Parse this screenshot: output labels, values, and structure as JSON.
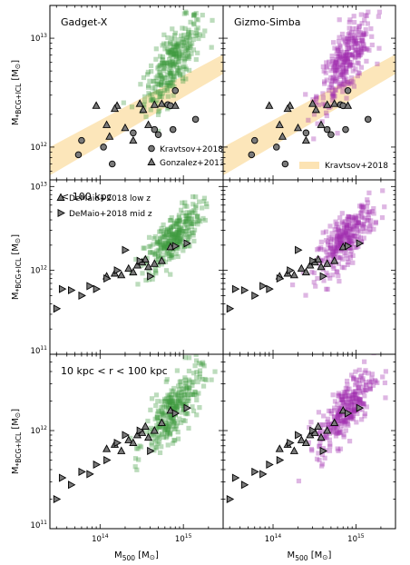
{
  "figure": {
    "xlabel": "M$_{500}$ [M$_\\odot$]",
    "xlabel_plain": "M500 [M⊙]",
    "ylabel_plain": "M*BCG+ICL [M⊙]",
    "x_tick_labels": [
      "10^14",
      "10^15"
    ]
  },
  "chart_data": [
    {
      "type": "scatter",
      "panel_title": "Gadget-X",
      "xscale": "log",
      "yscale": "log",
      "xlim": [
        25000000000000.0,
        3000000000000000.0
      ],
      "ylim": [
        500000000000.0,
        20000000000000.0
      ],
      "y_tick_labels": [
        "10^12",
        "10^13"
      ],
      "legend": {
        "placement": "bottom-right",
        "entries": [
          "Kravtsov+2018",
          "Gonzalez+2013"
        ]
      },
      "simulation_color": "#3f9b3f",
      "series": [
        {
          "name": "Kravtsov+2018",
          "marker": "circle",
          "x": [
            60000000000000.0,
            55000000000000.0,
            110000000000000.0,
            140000000000000.0,
            250000000000000.0,
            450000000000000.0,
            500000000000000.0,
            650000000000000.0,
            700000000000000.0,
            750000000000000.0,
            800000000000000.0,
            1400000000000000.0
          ],
          "y": [
            1150000000000.0,
            850000000000.0,
            1000000000000.0,
            700000000000.0,
            1350000000000.0,
            1450000000000.0,
            1300000000000.0,
            2450000000000.0,
            2400000000000.0,
            1450000000000.0,
            3300000000000.0,
            1800000000000.0
          ]
        },
        {
          "name": "Gonzalez+2013",
          "marker": "triangle",
          "x": [
            90000000000000.0,
            130000000000000.0,
            160000000000000.0,
            200000000000000.0,
            250000000000000.0,
            300000000000000.0,
            330000000000000.0,
            380000000000000.0,
            450000000000000.0,
            550000000000000.0,
            800000000000000.0,
            120000000000000.0,
            150000000000000.0
          ],
          "y": [
            2400000000000.0,
            1250000000000.0,
            2400000000000.0,
            1500000000000.0,
            1150000000000.0,
            2500000000000.0,
            2200000000000.0,
            1600000000000.0,
            2450000000000.0,
            2500000000000.0,
            2400000000000.0,
            1600000000000.0,
            2250000000000.0
          ]
        }
      ],
      "band": {
        "name": "Kravtsov+2018",
        "color": "#fce3b3",
        "x": [
          25000000000000.0,
          3000000000000000.0
        ],
        "y_lower": [
          550000000000.0,
          4700000000000.0
        ],
        "y_upper": [
          1000000000000.0,
          7100000000000.0
        ]
      }
    },
    {
      "type": "scatter",
      "panel_title": "Gizmo-Simba",
      "xscale": "log",
      "yscale": "log",
      "xlim": [
        25000000000000.0,
        3000000000000000.0
      ],
      "ylim": [
        500000000000.0,
        20000000000000.0
      ],
      "y_tick_labels": [
        "10^12",
        "10^13"
      ],
      "legend": {
        "placement": "bottom-right",
        "entries": [
          "Kravtsov+2018"
        ]
      },
      "simulation_color": "#a12fb0",
      "series": [
        {
          "name": "Kravtsov+2018",
          "marker": "circle",
          "x": [
            60000000000000.0,
            55000000000000.0,
            110000000000000.0,
            140000000000000.0,
            250000000000000.0,
            450000000000000.0,
            500000000000000.0,
            650000000000000.0,
            700000000000000.0,
            750000000000000.0,
            800000000000000.0,
            1400000000000000.0
          ],
          "y": [
            1150000000000.0,
            850000000000.0,
            1000000000000.0,
            700000000000.0,
            1350000000000.0,
            1450000000000.0,
            1300000000000.0,
            2450000000000.0,
            2400000000000.0,
            1450000000000.0,
            3300000000000.0,
            1800000000000.0
          ]
        },
        {
          "name": "Gonzalez+2013",
          "marker": "triangle",
          "x": [
            90000000000000.0,
            130000000000000.0,
            160000000000000.0,
            200000000000000.0,
            250000000000000.0,
            300000000000000.0,
            330000000000000.0,
            380000000000000.0,
            450000000000000.0,
            550000000000000.0,
            800000000000000.0,
            120000000000000.0,
            150000000000000.0
          ],
          "y": [
            2400000000000.0,
            1250000000000.0,
            2400000000000.0,
            1500000000000.0,
            1150000000000.0,
            2500000000000.0,
            2200000000000.0,
            1600000000000.0,
            2450000000000.0,
            2500000000000.0,
            2400000000000.0,
            1600000000000.0,
            2250000000000.0
          ]
        }
      ],
      "band": {
        "name": "Kravtsov+2018",
        "color": "#fce3b3",
        "x": [
          25000000000000.0,
          3000000000000000.0
        ],
        "y_lower": [
          550000000000.0,
          4700000000000.0
        ],
        "y_upper": [
          1000000000000.0,
          7100000000000.0
        ]
      }
    },
    {
      "type": "scatter",
      "panel_title": "< 100 kpc",
      "xscale": "log",
      "yscale": "log",
      "xlim": [
        25000000000000.0,
        3000000000000000.0
      ],
      "ylim": [
        100000000000.0,
        12000000000000.0
      ],
      "y_tick_labels": [
        "10^11",
        "10^12",
        "10^13"
      ],
      "legend": {
        "placement": "top-right",
        "entries": [
          "DeMaio+2018 low z",
          "DeMaio+2018 mid z"
        ]
      },
      "simulation_color": "#3f9b3f",
      "series": [
        {
          "name": "DeMaio+2018 low z",
          "marker": "triangle",
          "x": [
            120000000000000.0,
            150000000000000.0,
            180000000000000.0,
            220000000000000.0,
            280000000000000.0,
            320000000000000.0,
            380000000000000.0,
            450000000000000.0,
            550000000000000.0,
            700000000000000.0,
            250000000000000.0,
            350000000000000.0
          ],
          "y": [
            850000000000.0,
            920000000000.0,
            880000000000.0,
            1050000000000.0,
            1150000000000.0,
            1250000000000.0,
            1100000000000.0,
            1200000000000.0,
            1300000000000.0,
            1900000000000.0,
            950000000000.0,
            1350000000000.0
          ]
        },
        {
          "name": "DeMaio+2018 mid z",
          "marker": "triangle-right",
          "x": [
            30000000000000.0,
            35000000000000.0,
            45000000000000.0,
            60000000000000.0,
            75000000000000.0,
            90000000000000.0,
            120000000000000.0,
            160000000000000.0,
            200000000000000.0,
            300000000000000.0,
            400000000000000.0,
            800000000000000.0,
            1100000000000000.0
          ],
          "y": [
            350000000000.0,
            600000000000.0,
            580000000000.0,
            500000000000.0,
            650000000000.0,
            600000000000.0,
            800000000000.0,
            1000000000000.0,
            1750000000000.0,
            1300000000000.0,
            850000000000.0,
            1950000000000.0,
            2100000000000.0
          ]
        }
      ]
    },
    {
      "type": "scatter",
      "panel_title": "",
      "xscale": "log",
      "yscale": "log",
      "xlim": [
        25000000000000.0,
        3000000000000000.0
      ],
      "ylim": [
        100000000000.0,
        12000000000000.0
      ],
      "y_tick_labels": [
        "10^11",
        "10^12",
        "10^13"
      ],
      "simulation_color": "#a12fb0",
      "series": [
        {
          "name": "DeMaio+2018 low z",
          "marker": "triangle",
          "x": [
            120000000000000.0,
            150000000000000.0,
            180000000000000.0,
            220000000000000.0,
            280000000000000.0,
            320000000000000.0,
            380000000000000.0,
            450000000000000.0,
            550000000000000.0,
            700000000000000.0,
            250000000000000.0,
            350000000000000.0
          ],
          "y": [
            850000000000.0,
            920000000000.0,
            880000000000.0,
            1050000000000.0,
            1150000000000.0,
            1250000000000.0,
            1100000000000.0,
            1200000000000.0,
            1300000000000.0,
            1900000000000.0,
            950000000000.0,
            1350000000000.0
          ]
        },
        {
          "name": "DeMaio+2018 mid z",
          "marker": "triangle-right",
          "x": [
            30000000000000.0,
            35000000000000.0,
            45000000000000.0,
            60000000000000.0,
            75000000000000.0,
            90000000000000.0,
            120000000000000.0,
            160000000000000.0,
            200000000000000.0,
            300000000000000.0,
            400000000000000.0,
            800000000000000.0,
            1100000000000000.0
          ],
          "y": [
            350000000000.0,
            600000000000.0,
            580000000000.0,
            500000000000.0,
            650000000000.0,
            600000000000.0,
            800000000000.0,
            1000000000000.0,
            1750000000000.0,
            1300000000000.0,
            850000000000.0,
            1950000000000.0,
            2100000000000.0
          ]
        }
      ]
    },
    {
      "type": "scatter",
      "panel_title": "10 kpc < r < 100 kpc",
      "xscale": "log",
      "yscale": "log",
      "xlim": [
        25000000000000.0,
        3000000000000000.0
      ],
      "ylim": [
        100000000000.0,
        6000000000000.0
      ],
      "y_tick_labels": [
        "10^11",
        "10^12"
      ],
      "simulation_color": "#3f9b3f",
      "series": [
        {
          "name": "DeMaio+2018 low z",
          "marker": "triangle",
          "x": [
            120000000000000.0,
            150000000000000.0,
            180000000000000.0,
            220000000000000.0,
            280000000000000.0,
            320000000000000.0,
            380000000000000.0,
            450000000000000.0,
            550000000000000.0,
            700000000000000.0,
            250000000000000.0,
            350000000000000.0
          ],
          "y": [
            650000000000.0,
            720000000000.0,
            620000000000.0,
            800000000000.0,
            900000000000.0,
            950000000000.0,
            850000000000.0,
            1000000000000.0,
            1200000000000.0,
            1600000000000.0,
            750000000000.0,
            1100000000000.0
          ]
        },
        {
          "name": "DeMaio+2018 mid z",
          "marker": "triangle-right",
          "x": [
            30000000000000.0,
            35000000000000.0,
            45000000000000.0,
            60000000000000.0,
            75000000000000.0,
            90000000000000.0,
            120000000000000.0,
            160000000000000.0,
            200000000000000.0,
            300000000000000.0,
            400000000000000.0,
            800000000000000.0,
            1100000000000000.0
          ],
          "y": [
            200000000000.0,
            330000000000.0,
            280000000000.0,
            380000000000.0,
            360000000000.0,
            450000000000.0,
            500000000000.0,
            750000000000.0,
            900000000000.0,
            1000000000000.0,
            620000000000.0,
            1500000000000.0,
            1700000000000.0
          ]
        }
      ]
    },
    {
      "type": "scatter",
      "panel_title": "",
      "xscale": "log",
      "yscale": "log",
      "xlim": [
        25000000000000.0,
        3000000000000000.0
      ],
      "ylim": [
        100000000000.0,
        6000000000000.0
      ],
      "y_tick_labels": [
        "10^11",
        "10^12"
      ],
      "simulation_color": "#a12fb0",
      "series": [
        {
          "name": "DeMaio+2018 low z",
          "marker": "triangle",
          "x": [
            120000000000000.0,
            150000000000000.0,
            180000000000000.0,
            220000000000000.0,
            280000000000000.0,
            320000000000000.0,
            380000000000000.0,
            450000000000000.0,
            550000000000000.0,
            700000000000000.0,
            250000000000000.0,
            350000000000000.0
          ],
          "y": [
            650000000000.0,
            720000000000.0,
            620000000000.0,
            800000000000.0,
            900000000000.0,
            950000000000.0,
            850000000000.0,
            1000000000000.0,
            1200000000000.0,
            1600000000000.0,
            750000000000.0,
            1100000000000.0
          ]
        },
        {
          "name": "DeMaio+2018 mid z",
          "marker": "triangle-right",
          "x": [
            30000000000000.0,
            35000000000000.0,
            45000000000000.0,
            60000000000000.0,
            75000000000000.0,
            90000000000000.0,
            120000000000000.0,
            160000000000000.0,
            200000000000000.0,
            300000000000000.0,
            400000000000000.0,
            800000000000000.0,
            1100000000000000.0
          ],
          "y": [
            200000000000.0,
            330000000000.0,
            280000000000.0,
            380000000000.0,
            360000000000.0,
            450000000000.0,
            500000000000.0,
            750000000000.0,
            900000000000.0,
            1000000000000.0,
            620000000000.0,
            1500000000000.0,
            1700000000000.0
          ]
        }
      ]
    }
  ]
}
